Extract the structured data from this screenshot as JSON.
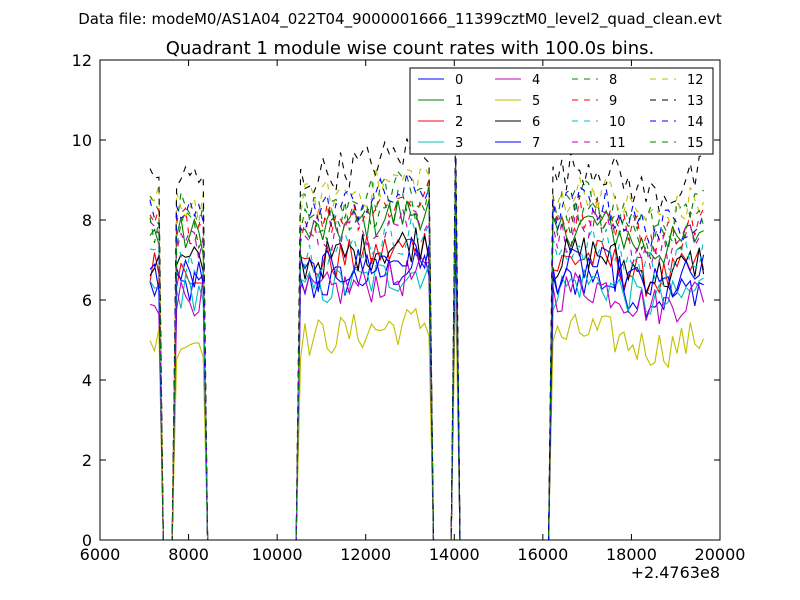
{
  "chart_data": {
    "type": "line",
    "suptitle": "Data file: modeM0/AS1A04_022T04_9000001666_11399cztM0_level2_quad_clean.evt",
    "title": "Quadrant 1 module wise count rates with 100.0s bins.",
    "xlabel": "",
    "ylabel": "",
    "x_offset_label": "+2.4763e8",
    "xlim": [
      6000,
      20000
    ],
    "ylim": [
      0,
      12
    ],
    "x_ticks": [
      6000,
      8000,
      10000,
      12000,
      14000,
      16000,
      18000,
      20000
    ],
    "y_ticks": [
      0,
      2,
      4,
      6,
      8,
      10,
      12
    ],
    "grid": false,
    "legend": {
      "position": "top-right",
      "columns": 4
    },
    "series": [
      {
        "name": "0",
        "color": "#0000ff",
        "dash": "solid"
      },
      {
        "name": "1",
        "color": "#008000",
        "dash": "solid"
      },
      {
        "name": "2",
        "color": "#ff0000",
        "dash": "solid"
      },
      {
        "name": "3",
        "color": "#00bfbf",
        "dash": "solid"
      },
      {
        "name": "4",
        "color": "#bf00bf",
        "dash": "solid"
      },
      {
        "name": "5",
        "color": "#bfbf00",
        "dash": "solid"
      },
      {
        "name": "6",
        "color": "#000000",
        "dash": "solid"
      },
      {
        "name": "7",
        "color": "#0000ff",
        "dash": "solid"
      },
      {
        "name": "8",
        "color": "#008000",
        "dash": "dashed"
      },
      {
        "name": "9",
        "color": "#ff0000",
        "dash": "dashed"
      },
      {
        "name": "10",
        "color": "#00bfbf",
        "dash": "dashed"
      },
      {
        "name": "11",
        "color": "#bf00bf",
        "dash": "dashed"
      },
      {
        "name": "12",
        "color": "#bfbf00",
        "dash": "dashed"
      },
      {
        "name": "13",
        "color": "#000000",
        "dash": "dashed"
      },
      {
        "name": "14",
        "color": "#0000ff",
        "dash": "dashed"
      },
      {
        "name": "15",
        "color": "#008000",
        "dash": "dashed"
      }
    ],
    "x_start": 7130,
    "x_end": 19630,
    "bin": 100,
    "segments": [
      {
        "x0": 7130,
        "x1": 7330,
        "active": true
      },
      {
        "x0": 7430,
        "x1": 7630,
        "active": false
      },
      {
        "x0": 7730,
        "x1": 8330,
        "active": true
      },
      {
        "x0": 8430,
        "x1": 10430,
        "active": false
      },
      {
        "x0": 10530,
        "x1": 13430,
        "active": true
      },
      {
        "x0": 13530,
        "x1": 13930,
        "active": false
      },
      {
        "x0": 14030,
        "x1": 14030,
        "active": true
      },
      {
        "x0": 14130,
        "x1": 16130,
        "active": false
      },
      {
        "x0": 16230,
        "x1": 19630,
        "active": true
      }
    ],
    "base_levels": [
      6.3,
      7.6,
      6.8,
      6.2,
      6.1,
      5.0,
      6.9,
      6.6,
      8.2,
      7.9,
      7.1,
      7.5,
      8.4,
      9.0,
      8.1,
      7.8
    ]
  }
}
